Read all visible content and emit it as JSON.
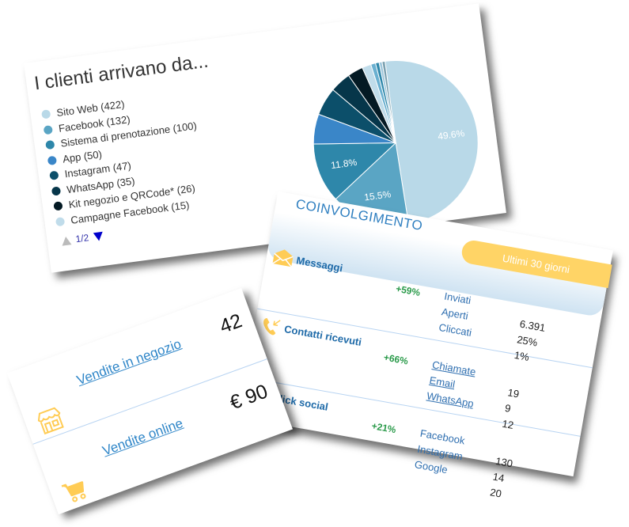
{
  "sources_card": {
    "title": "I clienti arrivano da...",
    "legend": [
      {
        "label": "Sito Web (422)",
        "color": "#b9d9e8"
      },
      {
        "label": "Facebook (132)",
        "color": "#5aa5c4"
      },
      {
        "label": "Sistema di prenotazione (100)",
        "color": "#2e87aa"
      },
      {
        "label": "App (50)",
        "color": "#3a86c8"
      },
      {
        "label": "Instagram (47)",
        "color": "#0c4f6a"
      },
      {
        "label": "WhatsApp (35)",
        "color": "#06364a"
      },
      {
        "label": "Kit negozio e QRCode* (26)",
        "color": "#041a24"
      },
      {
        "label": "Campagne Facebook (15)",
        "color": "#c0dcea"
      }
    ],
    "pager": "1/2"
  },
  "chart_data": {
    "type": "pie",
    "categories": [
      "Sito Web",
      "Facebook",
      "Sistema di prenotazione",
      "App",
      "Instagram",
      "WhatsApp",
      "Kit negozio e QRCode*",
      "Campagne Facebook",
      "",
      "",
      "",
      ""
    ],
    "values": [
      422,
      132,
      100,
      50,
      47,
      35,
      26,
      15,
      8,
      6,
      5,
      5
    ],
    "colors": [
      "#b9d9e8",
      "#5aa5c4",
      "#2e87aa",
      "#3a86c8",
      "#0c4f6a",
      "#06364a",
      "#041a24",
      "#c0dcea",
      "#6ab0d0",
      "#2e87aa",
      "#9fc7dc",
      "#7aa0b0"
    ],
    "data_labels": [
      "49.6%",
      "15.5%",
      "11.8%",
      "",
      "",
      "",
      "",
      "",
      "",
      "",
      "",
      ""
    ]
  },
  "engagement_card": {
    "title": "COINVOLGIMENTO",
    "period": "Ultimi 30 giorni",
    "rows": [
      {
        "label": "Messaggi",
        "icon": "envelope-icon",
        "delta": "+59%",
        "names": [
          "Inviati",
          "Aperti",
          "Cliccati"
        ],
        "values": [
          "6.391",
          "25%",
          "1%"
        ],
        "links": false
      },
      {
        "label": "Contatti ricevuti",
        "icon": "phone-incoming-icon",
        "delta": "+66%",
        "names": [
          "Chiamate",
          "Email",
          "WhatsApp"
        ],
        "values": [
          "19",
          "9",
          "12"
        ],
        "links": true
      },
      {
        "label": "Click social",
        "icon": "social-icon",
        "delta": "+21%",
        "names": [
          "Facebook",
          "Instagram",
          "Google"
        ],
        "values": [
          "130",
          "14",
          "20"
        ],
        "links": false
      }
    ]
  },
  "sales_card": {
    "rows": [
      {
        "label": "Vendite in negozio",
        "value": "42",
        "icon": "store-icon"
      },
      {
        "label": "Vendite online",
        "value": "€ 90",
        "icon": "cart-icon"
      }
    ]
  },
  "colors": {
    "accent": "#2f86c8",
    "highlight": "#ffd466",
    "positive": "#2a9a4a"
  }
}
